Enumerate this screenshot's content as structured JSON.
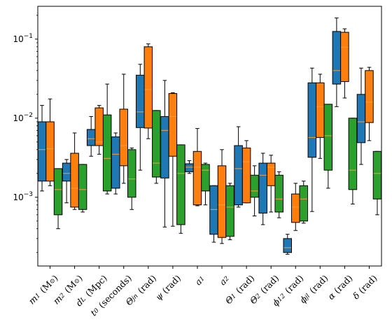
{
  "chart_data": {
    "type": "box",
    "title": "",
    "xlabel": "",
    "ylabel": "",
    "y_scale": "log",
    "ylim": [
      0.000135,
      0.26
    ],
    "y_ticks": [
      {
        "value": 0.001,
        "label_base": "10",
        "label_exp": "−3"
      },
      {
        "value": 0.01,
        "label_base": "10",
        "label_exp": "−2"
      },
      {
        "value": 0.1,
        "label_base": "10",
        "label_exp": "−1"
      }
    ],
    "grid": false,
    "legend": "none",
    "categories": [
      "m1 (M⊙)",
      "m2 (M⊙)",
      "dL (Mpc)",
      "t0 (seconds)",
      "Θjn (rad)",
      "ψ (rad)",
      "a1",
      "a2",
      "Θ1 (rad)",
      "Θ2 (rad)",
      "ϕ12 (rad)",
      "ϕjl (rad)",
      "α (rad)",
      "δ (rad)"
    ],
    "category_labels_rich": [
      {
        "main": "m",
        "sub": "1",
        "tail": " (M",
        "sun": "⊙",
        "end": ")"
      },
      {
        "main": "m",
        "sub": "2",
        "tail": " (M",
        "sun": "⊙",
        "end": ")"
      },
      {
        "main": "d",
        "sub": "L",
        "tail": " (Mpc)"
      },
      {
        "main": "t",
        "sub": "0",
        "tail": " (seconds)"
      },
      {
        "main": "Θ",
        "sub": "jn",
        "tail": " (rad)"
      },
      {
        "main": "ψ",
        "sub": "",
        "tail": " (rad)"
      },
      {
        "main": "a",
        "sub": "1",
        "tail": ""
      },
      {
        "main": "a",
        "sub": "2",
        "tail": ""
      },
      {
        "main": "Θ",
        "sub": "1",
        "tail": " (rad)"
      },
      {
        "main": "Θ",
        "sub": "2",
        "tail": " (rad)"
      },
      {
        "main": "ϕ",
        "sub": "12",
        "tail": " (rad)"
      },
      {
        "main": "ϕ",
        "sub": "jl",
        "tail": " (rad)"
      },
      {
        "main": "α",
        "sub": "",
        "tail": " (rad)"
      },
      {
        "main": "δ",
        "sub": "",
        "tail": " (rad)"
      }
    ],
    "series": [
      {
        "color": "#1f77b4",
        "boxes": [
          {
            "whislo": 0.0012,
            "q1": 0.0016,
            "med": 0.004,
            "q3": 0.009,
            "whishi": 0.0145
          },
          {
            "whislo": 0.00085,
            "q1": 0.0016,
            "med": 0.002,
            "q3": 0.0027,
            "whishi": 0.003
          },
          {
            "whislo": 0.0033,
            "q1": 0.0045,
            "med": 0.0055,
            "q3": 0.0072,
            "whishi": 0.0105
          },
          {
            "whislo": 0.0011,
            "q1": 0.0013,
            "med": 0.0035,
            "q3": 0.0058,
            "whishi": 0.0065
          },
          {
            "whislo": 0.0022,
            "q1": 0.0076,
            "med": 0.012,
            "q3": 0.035,
            "whishi": 0.048
          },
          {
            "whislo": 0.00042,
            "q1": 0.00175,
            "med": 0.007,
            "q3": 0.0105,
            "whishi": 0.03
          },
          {
            "whislo": 0.002,
            "q1": 0.0021,
            "med": 0.0024,
            "q3": 0.00265,
            "whishi": 0.0029
          },
          {
            "whislo": 0.00027,
            "q1": 0.00034,
            "med": 0.0007,
            "q3": 0.0014,
            "whishi": 0.0014
          },
          {
            "whislo": 0.00075,
            "q1": 0.0008,
            "med": 0.0023,
            "q3": 0.0045,
            "whishi": 0.0078
          },
          {
            "whislo": 0.00045,
            "q1": 0.00063,
            "med": 0.0019,
            "q3": 0.0027,
            "whishi": 0.0036
          },
          {
            "whislo": 0.00019,
            "q1": 0.0002,
            "med": 0.00023,
            "q3": 0.0003,
            "whishi": 0.00034
          },
          {
            "whislo": 0.00066,
            "q1": 0.0032,
            "med": 0.0057,
            "q3": 0.028,
            "whishi": 0.043
          },
          {
            "whislo": 0.014,
            "q1": 0.027,
            "med": 0.04,
            "q3": 0.125,
            "whishi": 0.185
          },
          {
            "whislo": 0.0026,
            "q1": 0.0049,
            "med": 0.009,
            "q3": 0.02,
            "whishi": 0.043
          }
        ]
      },
      {
        "color": "#ff7f0e",
        "boxes": [
          {
            "whislo": 0.0014,
            "q1": 0.0016,
            "med": 0.0041,
            "q3": 0.009,
            "whishi": 0.0175
          },
          {
            "whislo": 0.0007,
            "q1": 0.00075,
            "med": 0.0013,
            "q3": 0.0036,
            "whishi": 0.0065
          },
          {
            "whislo": 0.0035,
            "q1": 0.0045,
            "med": 0.005,
            "q3": 0.0135,
            "whishi": 0.0145
          },
          {
            "whislo": 0.0015,
            "q1": 0.0025,
            "med": 0.0045,
            "q3": 0.013,
            "whishi": 0.036
          },
          {
            "whislo": 0.0055,
            "q1": 0.0075,
            "med": 0.023,
            "q3": 0.08,
            "whishi": 0.087
          },
          {
            "whislo": 0.00043,
            "q1": 0.0033,
            "med": 0.0105,
            "q3": 0.0205,
            "whishi": 0.021
          },
          {
            "whislo": 0.00078,
            "q1": 0.0008,
            "med": 0.0024,
            "q3": 0.0038,
            "whishi": 0.0074
          },
          {
            "whislo": 0.00026,
            "q1": 0.00031,
            "med": 0.0008,
            "q3": 0.0025,
            "whishi": 0.004
          },
          {
            "whislo": 0.00085,
            "q1": 0.00085,
            "med": 0.0028,
            "q3": 0.0042,
            "whishi": 0.0052
          },
          {
            "whislo": 0.00065,
            "q1": 0.0014,
            "med": 0.0024,
            "q3": 0.0027,
            "whishi": 0.0034
          },
          {
            "whislo": 0.00038,
            "q1": 0.00048,
            "med": 0.00075,
            "q3": 0.0011,
            "whishi": 0.0015
          },
          {
            "whislo": 0.0031,
            "q1": 0.0057,
            "med": 0.014,
            "q3": 0.028,
            "whishi": 0.036
          },
          {
            "whislo": 0.018,
            "q1": 0.029,
            "med": 0.079,
            "q3": 0.122,
            "whishi": 0.135
          },
          {
            "whislo": 0.0052,
            "q1": 0.0088,
            "med": 0.016,
            "q3": 0.04,
            "whishi": 0.044
          }
        ]
      },
      {
        "color": "#2ca02c",
        "boxes": [
          {
            "whislo": 0.0004,
            "q1": 0.0006,
            "med": 0.00125,
            "q3": 0.0023,
            "whishi": 0.0023
          },
          {
            "whislo": 0.00065,
            "q1": 0.0007,
            "med": 0.00125,
            "q3": 0.0026,
            "whishi": 0.0026
          },
          {
            "whislo": 0.0011,
            "q1": 0.0012,
            "med": 0.0031,
            "q3": 0.011,
            "whishi": 0.027
          },
          {
            "whislo": 0.0007,
            "q1": 0.001,
            "med": 0.0017,
            "q3": 0.004,
            "whishi": 0.0042
          },
          {
            "whislo": 0.0015,
            "q1": 0.0018,
            "med": 0.0027,
            "q3": 0.0125,
            "whishi": 0.0125
          },
          {
            "whislo": 0.00035,
            "q1": 0.00045,
            "med": 0.002,
            "q3": 0.0046,
            "whishi": 0.0046
          },
          {
            "whislo": 0.0008,
            "q1": 0.0012,
            "med": 0.0022,
            "q3": 0.0026,
            "whishi": 0.0027
          },
          {
            "whislo": 0.00029,
            "q1": 0.00032,
            "med": 0.00075,
            "q3": 0.0014,
            "whishi": 0.0015
          },
          {
            "whislo": 0.00058,
            "q1": 0.001,
            "med": 0.0012,
            "q3": 0.0019,
            "whishi": 0.0025
          },
          {
            "whislo": 0.00055,
            "q1": 0.00065,
            "med": 0.00095,
            "q3": 0.0019,
            "whishi": 0.0021
          },
          {
            "whislo": 0.00047,
            "q1": 0.0005,
            "med": 0.00095,
            "q3": 0.0014,
            "whishi": 0.0016
          },
          {
            "whislo": 0.0013,
            "q1": 0.0022,
            "med": 0.006,
            "q3": 0.015,
            "whishi": 0.015
          },
          {
            "whislo": 0.00082,
            "q1": 0.00125,
            "med": 0.0022,
            "q3": 0.01,
            "whishi": 0.01
          },
          {
            "whislo": 0.0006,
            "q1": 0.00095,
            "med": 0.002,
            "q3": 0.0038,
            "whishi": 0.0038
          }
        ]
      }
    ]
  }
}
